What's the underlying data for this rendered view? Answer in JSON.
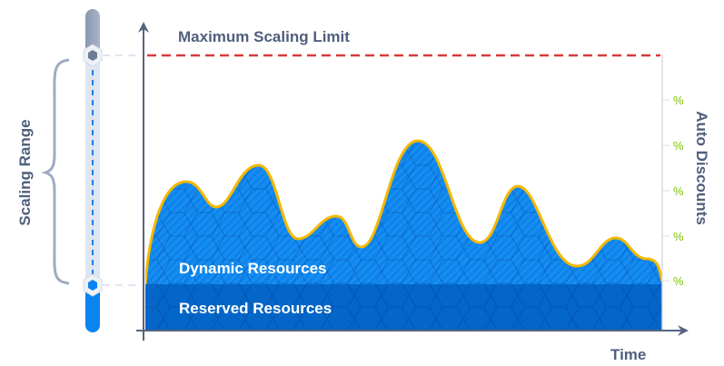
{
  "labels": {
    "max_limit": "Maximum Scaling Limit",
    "scaling_range": "Scaling Range",
    "dynamic": "Dynamic Resources",
    "reserved": "Reserved Resources",
    "auto_discounts": "Auto Discounts",
    "time": "Time"
  },
  "discount_ticks": [
    "%",
    "%",
    "%",
    "%",
    "%"
  ],
  "colors": {
    "dynamic_fill": "#0a84ee",
    "reserved_fill": "#0466c8",
    "curve_stroke": "#f5b800",
    "max_limit_line": "#d93a3a",
    "axis": "#56647f",
    "percent_text": "#7cc400",
    "slider_active": "#0a84ee",
    "slider_track": "#dfe6f2"
  }
}
